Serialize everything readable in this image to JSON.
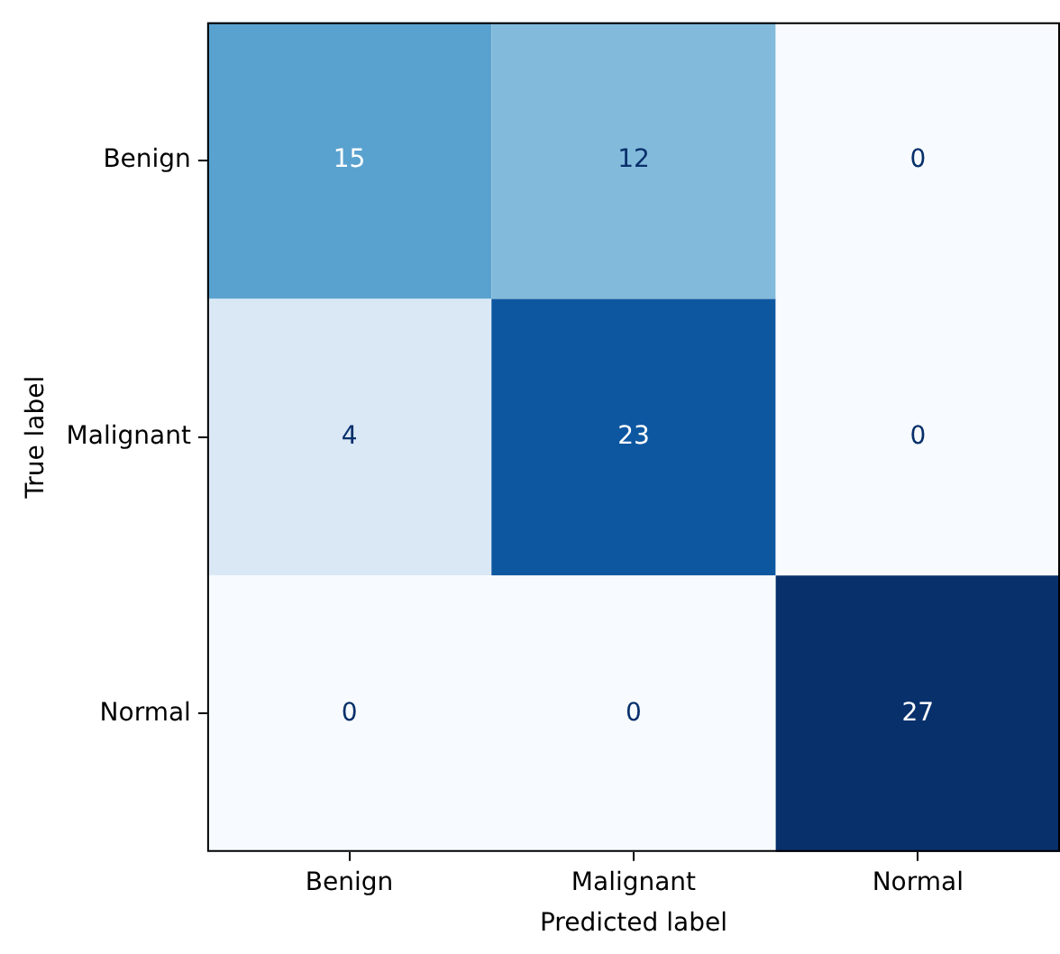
{
  "chart_data": {
    "type": "heatmap",
    "xlabel": "Predicted label",
    "ylabel": "True label",
    "categories": [
      "Benign",
      "Malignant",
      "Normal"
    ],
    "y_categories": [
      "Benign",
      "Malignant",
      "Normal"
    ],
    "cells": [
      [
        15,
        12,
        0
      ],
      [
        4,
        23,
        0
      ],
      [
        0,
        0,
        27
      ]
    ],
    "data_labels": true
  }
}
